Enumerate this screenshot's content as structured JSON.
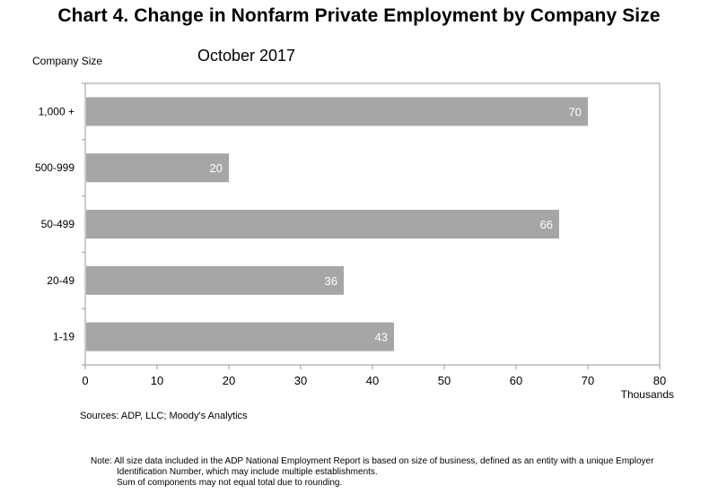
{
  "chart_data": {
    "type": "bar",
    "orientation": "horizontal",
    "title": "Chart 4. Change in Nonfarm Private Employment by Company Size",
    "subtitle": "October 2017",
    "ylabel": "Company Size",
    "xlabel": "Thousands",
    "categories": [
      "1,000 +",
      "500-999",
      "50-499",
      "20-49",
      "1-19"
    ],
    "values": [
      70,
      20,
      66,
      36,
      43
    ],
    "data_labels": [
      "70",
      "20",
      "66",
      "36",
      "43"
    ],
    "xlim": [
      0,
      80
    ],
    "xticks": [
      "0",
      "10",
      "20",
      "30",
      "40",
      "50",
      "60",
      "70",
      "80"
    ],
    "grid": false,
    "bar_color": "#a6a6a6",
    "label_color": "#ffffff"
  },
  "source": "Sources: ADP, LLC; Moody's Analytics",
  "note": {
    "line1": "Note:  All size data included in the ADP National Employment Report is based on size of business, defined as an entity with a unique Employer",
    "line2": "Identification Number, which may include multiple establishments.",
    "line3": "Sum of components may not equal total due to rounding."
  }
}
